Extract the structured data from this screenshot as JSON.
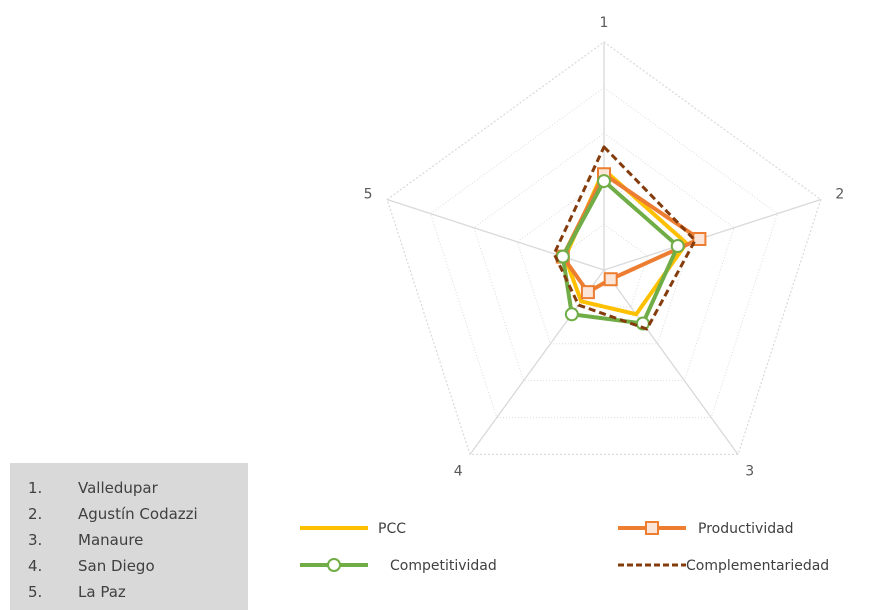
{
  "chart_data": {
    "type": "radar",
    "categories": [
      "1",
      "2",
      "3",
      "4",
      "5"
    ],
    "rmax": 1.0,
    "rings": 5,
    "series": [
      {
        "name": "PCC",
        "values": [
          0.44,
          0.38,
          0.24,
          0.17,
          0.18
        ],
        "color": "#FFC000",
        "style": "solid",
        "marker": "none"
      },
      {
        "name": "Productividad",
        "values": [
          0.42,
          0.44,
          0.05,
          0.12,
          0.19
        ],
        "color": "#ED7D31",
        "style": "solid",
        "marker": "square"
      },
      {
        "name": "Competitividad",
        "values": [
          0.39,
          0.34,
          0.29,
          0.24,
          0.19
        ],
        "color": "#70AD47",
        "style": "solid",
        "marker": "circle"
      },
      {
        "name": "Complementariedad",
        "values": [
          0.54,
          0.42,
          0.32,
          0.19,
          0.23
        ],
        "color": "#843C0C",
        "style": "dashed",
        "marker": "none"
      }
    ],
    "legend_position": "bottom"
  },
  "key_list": [
    {
      "num": "1.",
      "name": "Valledupar"
    },
    {
      "num": "2.",
      "name": "Agustín Codazzi"
    },
    {
      "num": "3.",
      "name": "Manaure"
    },
    {
      "num": "4.",
      "name": "San Diego"
    },
    {
      "num": "5.",
      "name": "La Paz"
    }
  ]
}
